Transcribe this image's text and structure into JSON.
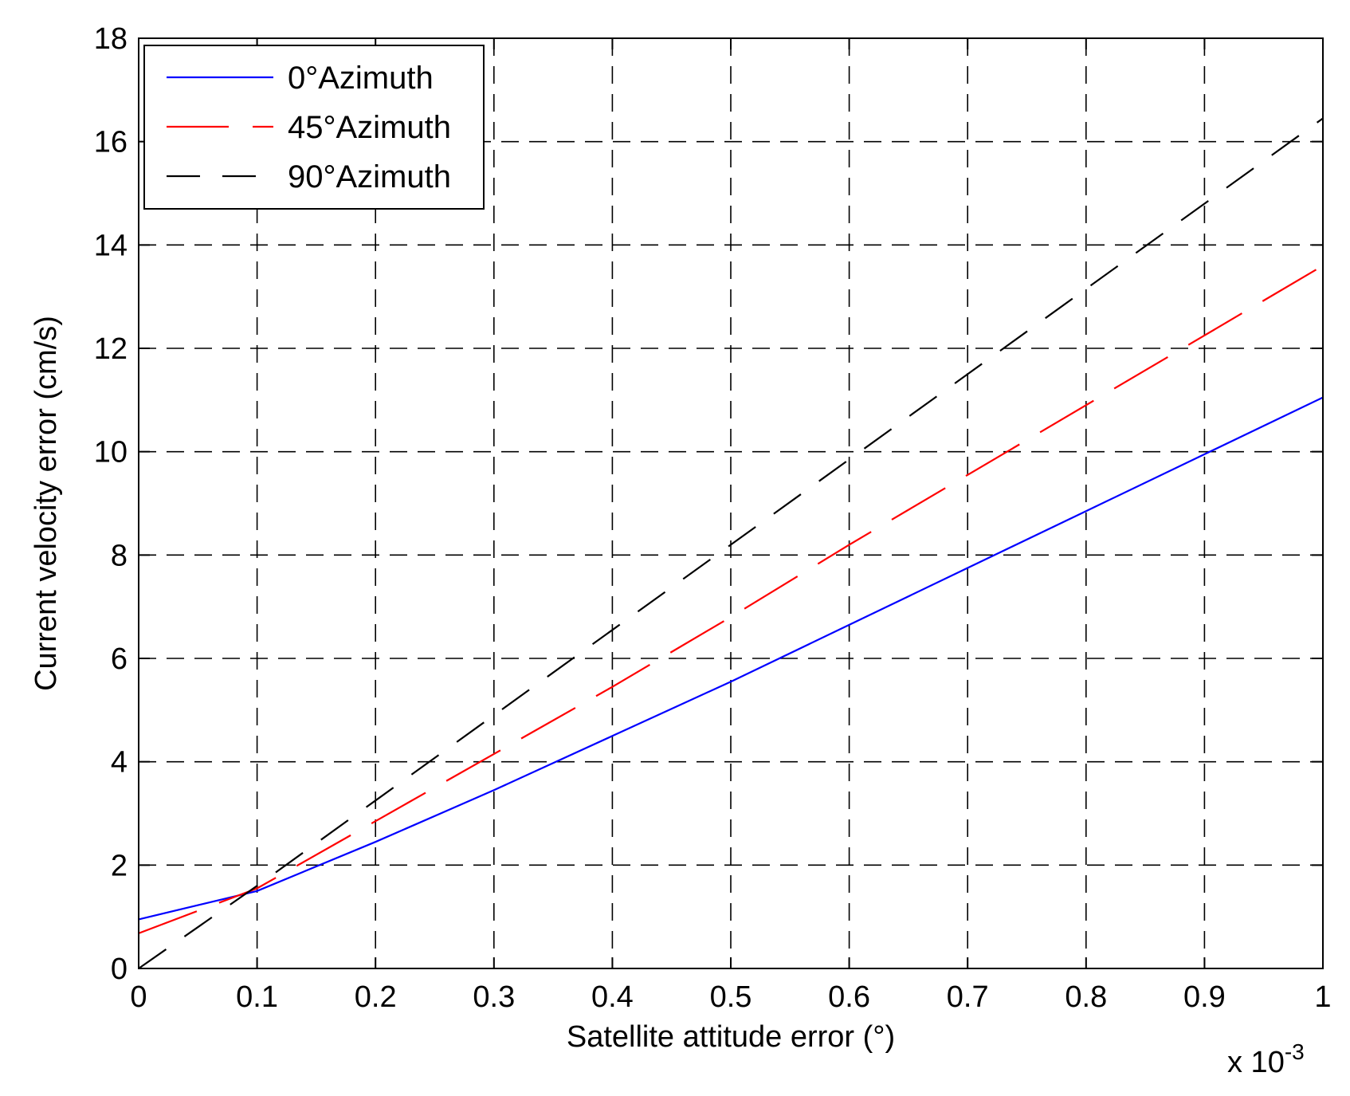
{
  "chart_data": {
    "type": "line",
    "title": "",
    "xlabel": "Satellite attitude error (°)",
    "ylabel": "Current velocity error (cm/s)",
    "x_multiplier_label": "x 10",
    "x_multiplier_exponent": "-3",
    "xlim": [
      0,
      1
    ],
    "ylim": [
      0,
      18
    ],
    "x_ticks": [
      0,
      0.1,
      0.2,
      0.3,
      0.4,
      0.5,
      0.6,
      0.7,
      0.8,
      0.9,
      1
    ],
    "x_tick_labels": [
      "0",
      "0.1",
      "0.2",
      "0.3",
      "0.4",
      "0.5",
      "0.6",
      "0.7",
      "0.8",
      "0.9",
      "1"
    ],
    "y_ticks": [
      0,
      2,
      4,
      6,
      8,
      10,
      12,
      14,
      16,
      18
    ],
    "y_tick_labels": [
      "0",
      "2",
      "4",
      "6",
      "8",
      "10",
      "12",
      "14",
      "16",
      "18"
    ],
    "grid": true,
    "legend_position": "top-left",
    "series": [
      {
        "name": "0°Azimuth",
        "color": "#0000ff",
        "style": "solid",
        "x": [
          0,
          0.1,
          0.2,
          0.3,
          0.4,
          0.5,
          0.6,
          0.7,
          0.8,
          0.9,
          1
        ],
        "y": [
          0.95,
          1.5,
          2.45,
          3.45,
          4.5,
          5.55,
          6.65,
          7.75,
          8.85,
          9.95,
          11.05
        ]
      },
      {
        "name": "45°Azimuth",
        "color": "#ff0000",
        "style": "long-dash",
        "x": [
          0,
          0.1,
          0.2,
          0.3,
          0.4,
          0.5,
          0.6,
          0.7,
          0.8,
          0.9,
          1
        ],
        "y": [
          0.68,
          1.55,
          2.85,
          4.15,
          5.45,
          6.8,
          8.2,
          9.55,
          10.9,
          12.25,
          13.6
        ]
      },
      {
        "name": "90°Azimuth",
        "color": "#000000",
        "style": "dash",
        "x": [
          0,
          0.1,
          0.2,
          0.3,
          0.4,
          0.5,
          0.6,
          0.7,
          0.8,
          0.9,
          1
        ],
        "y": [
          0,
          1.6,
          3.25,
          4.9,
          6.55,
          8.2,
          9.85,
          11.5,
          13.15,
          14.8,
          16.45
        ]
      }
    ]
  }
}
